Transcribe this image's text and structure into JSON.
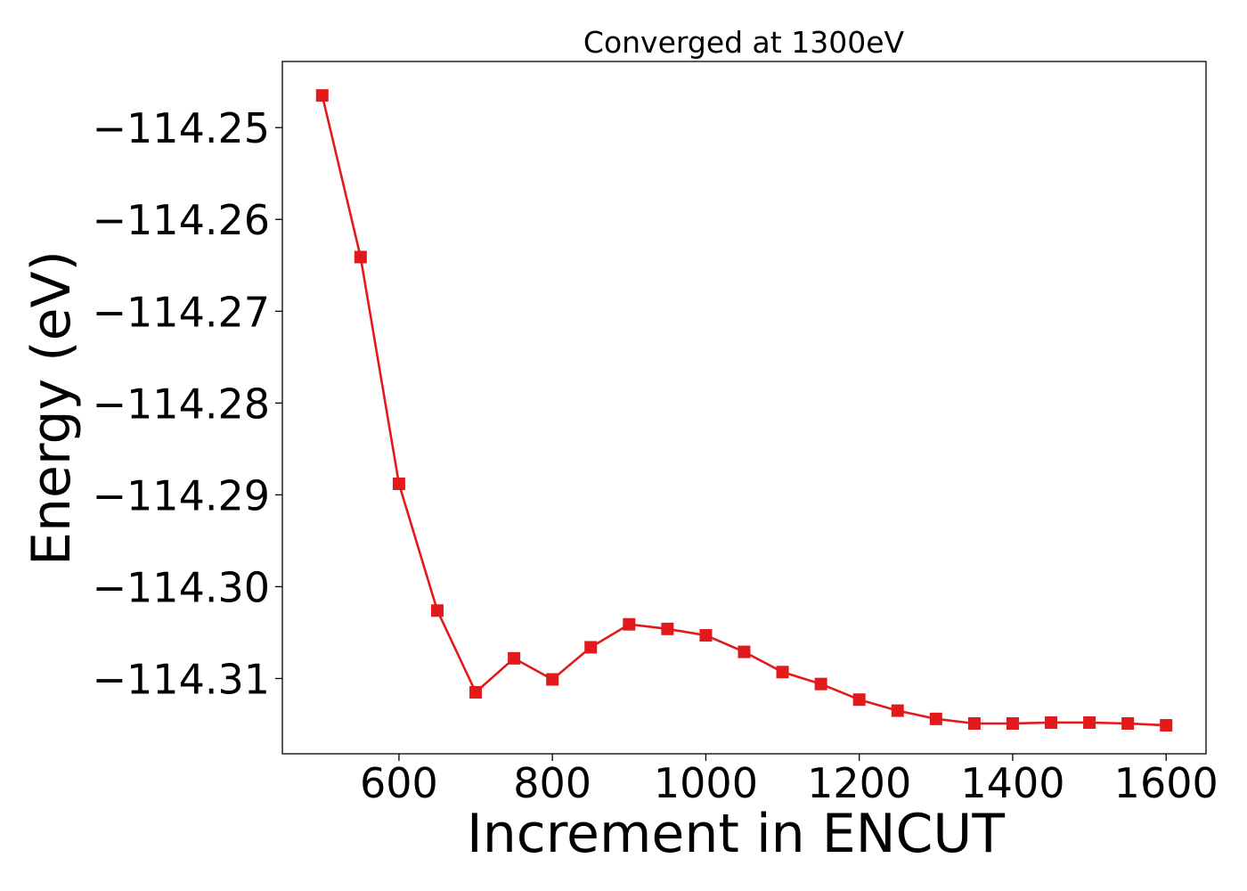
{
  "chart_data": {
    "type": "line",
    "title": "Converged at 1300eV",
    "xlabel": "Increment in ENCUT",
    "ylabel": "Energy (eV)",
    "xlim": [
      448,
      1652
    ],
    "ylim": [
      -114.3182,
      -114.2428
    ],
    "x_ticks": [
      {
        "value": 600,
        "label": "600"
      },
      {
        "value": 800,
        "label": "800"
      },
      {
        "value": 1000,
        "label": "1000"
      },
      {
        "value": 1200,
        "label": "1200"
      },
      {
        "value": 1400,
        "label": "1400"
      },
      {
        "value": 1600,
        "label": "1600"
      }
    ],
    "y_ticks": [
      {
        "value": -114.25,
        "label": "−114.25"
      },
      {
        "value": -114.26,
        "label": "−114.26"
      },
      {
        "value": -114.27,
        "label": "−114.27"
      },
      {
        "value": -114.28,
        "label": "−114.28"
      },
      {
        "value": -114.29,
        "label": "−114.29"
      },
      {
        "value": -114.3,
        "label": "−114.30"
      },
      {
        "value": -114.31,
        "label": "−114.31"
      }
    ],
    "grid": false,
    "legend": "none",
    "series": [
      {
        "color": "#e31a1c",
        "marker": "square",
        "x": [
          500,
          550,
          600,
          650,
          700,
          750,
          800,
          850,
          900,
          950,
          1000,
          1050,
          1100,
          1150,
          1200,
          1250,
          1300,
          1350,
          1400,
          1450,
          1500,
          1550,
          1600
        ],
        "y": [
          -114.2465,
          -114.2641,
          -114.2888,
          -114.3026,
          -114.3115,
          -114.3078,
          -114.3101,
          -114.3066,
          -114.3041,
          -114.3046,
          -114.3053,
          -114.3071,
          -114.3093,
          -114.3106,
          -114.3123,
          -114.3135,
          -114.3144,
          -114.3149,
          -114.3149,
          -114.3148,
          -114.3148,
          -114.3149,
          -114.3151
        ]
      }
    ]
  }
}
